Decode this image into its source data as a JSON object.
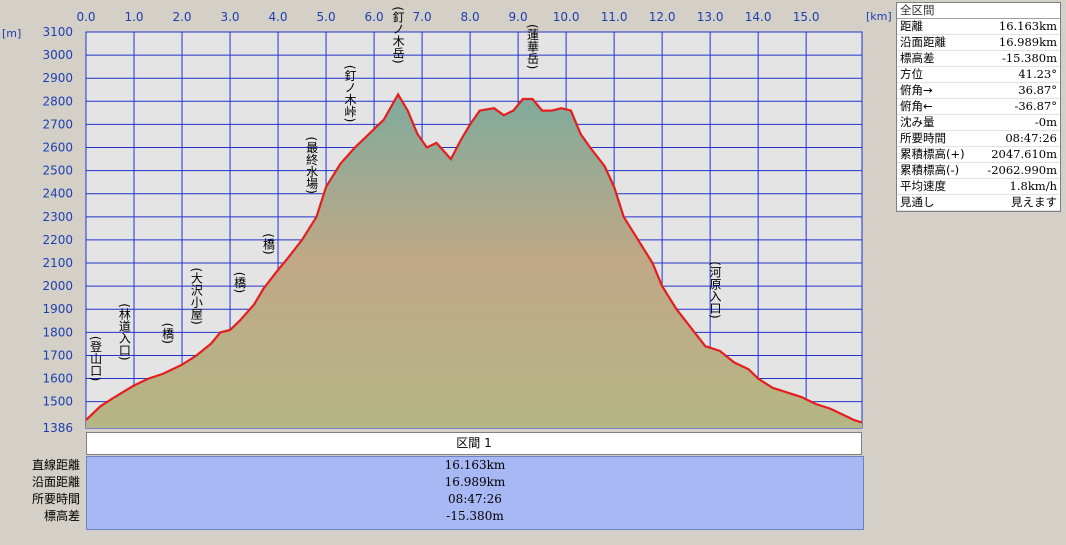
{
  "chart_data": {
    "type": "area",
    "title": "",
    "x_unit": "[km]",
    "y_unit": "[m]",
    "xlim": [
      0,
      16.163
    ],
    "ylim": [
      1386,
      3100
    ],
    "x_ticks": [
      "0.0",
      "1.0",
      "2.0",
      "3.0",
      "4.0",
      "5.0",
      "6.0",
      "7.0",
      "8.0",
      "9.0",
      "10.0",
      "11.0",
      "12.0",
      "13.0",
      "14.0",
      "15.0"
    ],
    "y_ticks": [
      "3100",
      "3000",
      "2900",
      "2800",
      "2700",
      "2600",
      "2500",
      "2400",
      "2300",
      "2200",
      "2100",
      "2000",
      "1900",
      "1800",
      "1700",
      "1600",
      "1500",
      "1386"
    ],
    "series": [
      {
        "x": [
          0.0,
          0.3,
          0.6,
          1.0,
          1.3,
          1.6,
          2.0,
          2.3,
          2.6,
          2.8,
          3.0,
          3.2,
          3.5,
          3.7,
          4.0,
          4.2,
          4.5,
          4.8,
          5.0,
          5.3,
          5.6,
          5.9,
          6.2,
          6.5,
          6.7,
          6.9,
          7.1,
          7.3,
          7.6,
          7.8,
          8.0,
          8.2,
          8.5,
          8.7,
          8.9,
          9.1,
          9.3,
          9.5,
          9.7,
          9.9,
          10.1,
          10.3,
          10.5,
          10.8,
          11.0,
          11.2,
          11.5,
          11.8,
          12.0,
          12.3,
          12.6,
          12.9,
          13.2,
          13.5,
          13.8,
          14.0,
          14.3,
          14.6,
          14.9,
          15.2,
          15.5,
          15.8,
          16.0,
          16.163
        ],
        "y": [
          1420,
          1480,
          1520,
          1570,
          1600,
          1620,
          1660,
          1700,
          1750,
          1800,
          1810,
          1850,
          1920,
          1990,
          2070,
          2120,
          2200,
          2300,
          2430,
          2530,
          2600,
          2660,
          2720,
          2830,
          2760,
          2660,
          2600,
          2620,
          2550,
          2630,
          2700,
          2760,
          2770,
          2740,
          2760,
          2810,
          2810,
          2760,
          2760,
          2770,
          2760,
          2660,
          2600,
          2520,
          2430,
          2300,
          2200,
          2100,
          2000,
          1900,
          1820,
          1740,
          1720,
          1670,
          1640,
          1600,
          1560,
          1540,
          1520,
          1490,
          1470,
          1440,
          1420,
          1410
        ]
      }
    ],
    "waypoints": [
      {
        "label": "(登山口)",
        "x": 0.2
      },
      {
        "label": "(林道入口)",
        "x": 0.8
      },
      {
        "label": "(橋)",
        "x": 1.7
      },
      {
        "label": "(大沢小屋)",
        "x": 2.3
      },
      {
        "label": "(橋)",
        "x": 3.2
      },
      {
        "label": "(橋)",
        "x": 3.8
      },
      {
        "label": "(最終水場)",
        "x": 4.7
      },
      {
        "label": "(釘ノ木峠)",
        "x": 5.5
      },
      {
        "label": "(釘ノ木岳)",
        "x": 6.5
      },
      {
        "label": "(蓮華岳)",
        "x": 9.3
      },
      {
        "label": "(河原入口)",
        "x": 13.1
      }
    ],
    "colors": {
      "line": "#e41e1e",
      "grid": "#2233cc",
      "top": "#7fab9c",
      "middle": "#c0a886",
      "bottom": "#b5b685",
      "plot_bg": "#e4e4e4"
    }
  },
  "info_panel": {
    "header": "全区間",
    "rows": [
      {
        "label": "距離",
        "value": "16.163km"
      },
      {
        "label": "沿面距離",
        "value": "16.989km"
      },
      {
        "label": "標高差",
        "value": "-15.380m"
      },
      {
        "label": "方位",
        "value": "41.23°"
      },
      {
        "label": "俯角→",
        "value": "36.87°"
      },
      {
        "label": "俯角←",
        "value": "-36.87°"
      },
      {
        "label": "沈み量",
        "value": "-0m"
      },
      {
        "label": "所要時間",
        "value": "08:47:26"
      },
      {
        "label": "累積標高(+)",
        "value": "2047.610m"
      },
      {
        "label": "累積標高(-)",
        "value": "-2062.990m"
      },
      {
        "label": "平均速度",
        "value": "1.8km/h"
      },
      {
        "label": "見通し",
        "value": "見えます"
      }
    ]
  },
  "segment": {
    "header": "区間 1",
    "labels": [
      "直線距離",
      "沿面距離",
      "所要時間",
      "標高差"
    ],
    "values": [
      "16.163km",
      "16.989km",
      "08:47:26",
      "-15.380m"
    ]
  }
}
